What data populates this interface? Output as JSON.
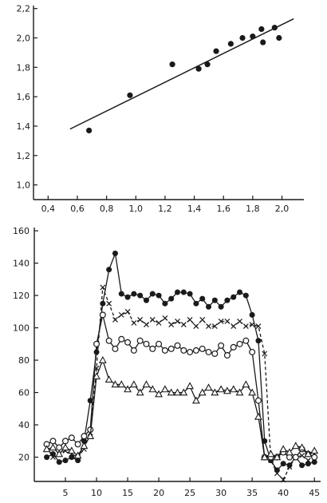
{
  "chart_data": [
    {
      "type": "scatter",
      "xlim": [
        0.3,
        2.15
      ],
      "ylim": [
        0.9,
        2.22
      ],
      "x_ticks": [
        "0,4",
        "0,6",
        "0,8",
        "1,0",
        "1,2",
        "1,4",
        "1,6",
        "1,8",
        "2,0"
      ],
      "y_ticks": [
        "1,0",
        "1,2",
        "1,4",
        "1,6",
        "1,8",
        "2,0",
        "2,2"
      ],
      "grid": false,
      "points": [
        {
          "x": 0.68,
          "y": 1.37
        },
        {
          "x": 0.96,
          "y": 1.61
        },
        {
          "x": 1.25,
          "y": 1.82
        },
        {
          "x": 1.43,
          "y": 1.79
        },
        {
          "x": 1.49,
          "y": 1.82
        },
        {
          "x": 1.55,
          "y": 1.91
        },
        {
          "x": 1.65,
          "y": 1.96
        },
        {
          "x": 1.73,
          "y": 2.0
        },
        {
          "x": 1.8,
          "y": 2.01
        },
        {
          "x": 1.86,
          "y": 2.06
        },
        {
          "x": 1.87,
          "y": 1.97
        },
        {
          "x": 1.95,
          "y": 2.07
        },
        {
          "x": 1.98,
          "y": 2.0
        }
      ],
      "fit_line": {
        "x": [
          0.55,
          2.08
        ],
        "y": [
          1.38,
          2.13
        ]
      }
    },
    {
      "type": "line",
      "xlim": [
        0,
        46
      ],
      "ylim": [
        5,
        162
      ],
      "x_ticks": [
        "5",
        "10",
        "15",
        "20",
        "25",
        "30",
        "35",
        "40",
        "45"
      ],
      "y_ticks": [
        "20",
        "40",
        "60",
        "80",
        "100",
        "120",
        "140",
        "160"
      ],
      "grid": false,
      "series": [
        {
          "marker": "filled-circle",
          "line": "solid",
          "x": [
            2,
            3,
            4,
            5,
            6,
            7,
            8,
            9,
            10,
            11,
            12,
            13,
            14,
            15,
            16,
            17,
            18,
            19,
            20,
            21,
            22,
            23,
            24,
            25,
            26,
            27,
            28,
            29,
            30,
            31,
            32,
            33,
            34,
            35,
            36,
            37,
            38,
            39,
            40,
            41,
            42,
            43,
            44,
            45
          ],
          "y": [
            20,
            22,
            17,
            18,
            20,
            18,
            30,
            55,
            85,
            115,
            136,
            146,
            121,
            119,
            121,
            120,
            117,
            121,
            120,
            115,
            118,
            122,
            122,
            121,
            115,
            118,
            113,
            117,
            113,
            117,
            119,
            122,
            120,
            108,
            92,
            30,
            18,
            12,
            16,
            15,
            20,
            15,
            16,
            17
          ]
        },
        {
          "marker": "cross",
          "line": "dashed",
          "x": [
            2,
            3,
            4,
            5,
            6,
            7,
            8,
            9,
            10,
            11,
            12,
            13,
            14,
            15,
            16,
            17,
            18,
            19,
            20,
            21,
            22,
            23,
            24,
            25,
            26,
            27,
            28,
            29,
            30,
            31,
            32,
            33,
            34,
            35,
            36,
            37,
            38,
            39,
            40,
            41,
            42,
            43,
            44,
            45
          ],
          "y": [
            26,
            20,
            22,
            24,
            22,
            20,
            25,
            35,
            75,
            125,
            115,
            105,
            108,
            110,
            103,
            105,
            102,
            105,
            103,
            106,
            102,
            104,
            102,
            105,
            101,
            105,
            101,
            101,
            104,
            104,
            101,
            104,
            101,
            102,
            101,
            84,
            18,
            10,
            6,
            14,
            20,
            21,
            18,
            22
          ]
        },
        {
          "marker": "open-circle",
          "line": "solid",
          "x": [
            2,
            3,
            4,
            5,
            6,
            7,
            8,
            9,
            10,
            11,
            12,
            13,
            14,
            15,
            16,
            17,
            18,
            19,
            20,
            21,
            22,
            23,
            24,
            25,
            26,
            27,
            28,
            29,
            30,
            31,
            32,
            33,
            34,
            35,
            36,
            37,
            38,
            39,
            40,
            41,
            42,
            43,
            44,
            45
          ],
          "y": [
            28,
            30,
            26,
            30,
            32,
            28,
            33,
            37,
            90,
            108,
            92,
            87,
            93,
            91,
            86,
            92,
            90,
            87,
            90,
            86,
            87,
            89,
            86,
            85,
            86,
            87,
            85,
            84,
            89,
            83,
            88,
            90,
            92,
            85,
            55,
            20,
            20,
            20,
            23,
            20,
            20,
            25,
            22,
            20
          ]
        },
        {
          "marker": "triangle",
          "line": "solid",
          "x": [
            2,
            3,
            4,
            5,
            6,
            7,
            8,
            9,
            10,
            11,
            12,
            13,
            14,
            15,
            16,
            17,
            18,
            19,
            20,
            21,
            22,
            23,
            24,
            25,
            26,
            27,
            28,
            29,
            30,
            31,
            32,
            33,
            34,
            35,
            36,
            37,
            38,
            39,
            40,
            41,
            42,
            43,
            44,
            45
          ],
          "y": [
            25,
            26,
            22,
            26,
            24,
            21,
            27,
            33,
            70,
            80,
            68,
            65,
            65,
            62,
            65,
            60,
            65,
            62,
            59,
            62,
            60,
            60,
            60,
            64,
            55,
            60,
            63,
            60,
            62,
            61,
            62,
            60,
            65,
            60,
            45,
            20,
            22,
            20,
            25,
            23,
            27,
            26,
            22,
            24
          ]
        }
      ]
    }
  ]
}
